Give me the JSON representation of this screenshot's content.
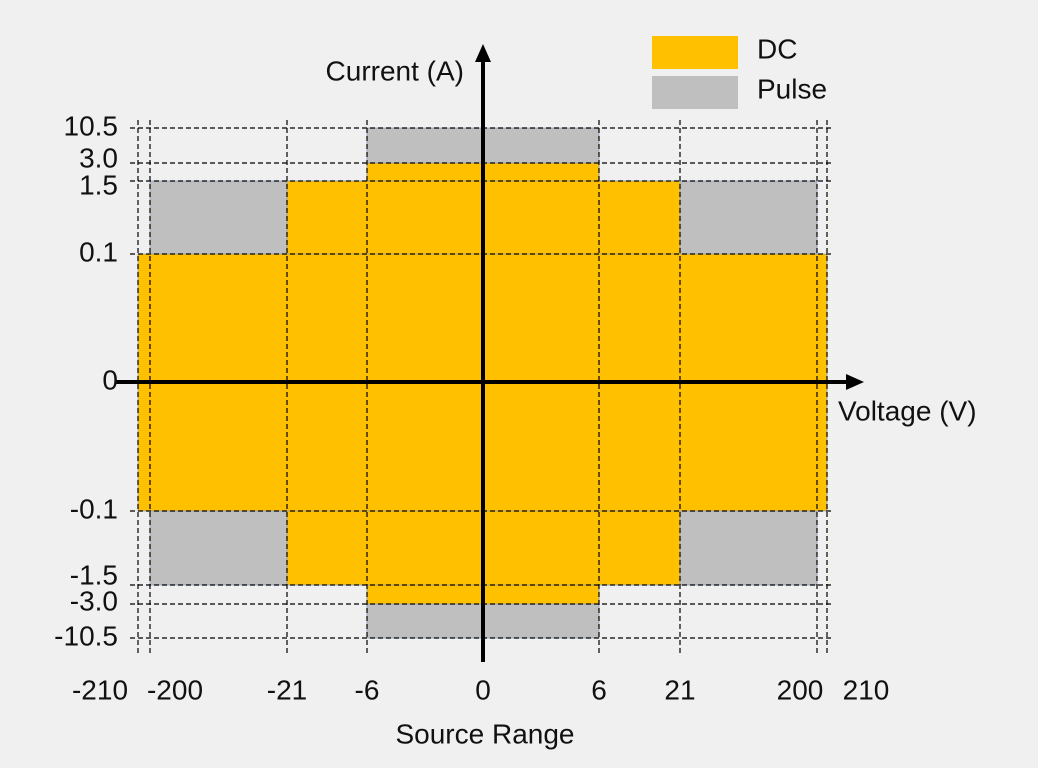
{
  "chart_data": {
    "type": "region",
    "x_axis_label": "Voltage (V)",
    "y_axis_label": "Current (A)",
    "x_caption": "Source Range",
    "xlim": [
      -210,
      210
    ],
    "ylim": [
      -10.5,
      10.5
    ],
    "xticks": [
      -210,
      -200,
      -21,
      -6,
      0,
      6,
      21,
      200,
      210
    ],
    "yticks": [
      {
        "value": 10.5,
        "label": "10.5"
      },
      {
        "value": 3,
        "label": "3.0"
      },
      1.5,
      0.1,
      0,
      -0.1,
      -1.5,
      {
        "value": -3,
        "label": "-3.0"
      },
      {
        "value": -10.5,
        "label": "-10.5"
      }
    ],
    "grid": true,
    "legend": "upper right",
    "series": [
      {
        "name": "Pulse",
        "color": "#bfbfbf",
        "values": [
          {
            "voltage": [
              -6,
              6
            ],
            "current": [
              -10.5,
              10.5
            ]
          },
          {
            "voltage": [
              -200,
              200
            ],
            "current": [
              -1.5,
              1.5
            ]
          }
        ]
      },
      {
        "name": "DC",
        "color": "#ffc000",
        "values": [
          {
            "voltage": [
              -6,
              6
            ],
            "current": [
              -3,
              3
            ]
          },
          {
            "voltage": [
              -21,
              21
            ],
            "current": [
              -1.5,
              1.5
            ]
          },
          {
            "voltage": [
              -210,
              210
            ],
            "current": [
              -0.1,
              0.1
            ]
          }
        ]
      }
    ]
  }
}
